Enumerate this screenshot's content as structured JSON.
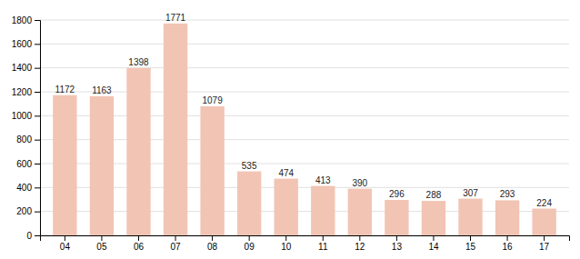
{
  "chart_data": {
    "type": "bar",
    "categories": [
      "04",
      "05",
      "06",
      "07",
      "08",
      "09",
      "10",
      "11",
      "12",
      "13",
      "14",
      "15",
      "16",
      "17"
    ],
    "values": [
      1172,
      1163,
      1398,
      1771,
      1079,
      535,
      474,
      413,
      390,
      296,
      288,
      307,
      293,
      224
    ],
    "color": "#f2c4b4",
    "ylim": [
      0,
      1800
    ],
    "yticks": [
      0,
      200,
      400,
      600,
      800,
      1000,
      1200,
      1400,
      1600,
      1800
    ],
    "grid": true,
    "data_labels": true
  }
}
